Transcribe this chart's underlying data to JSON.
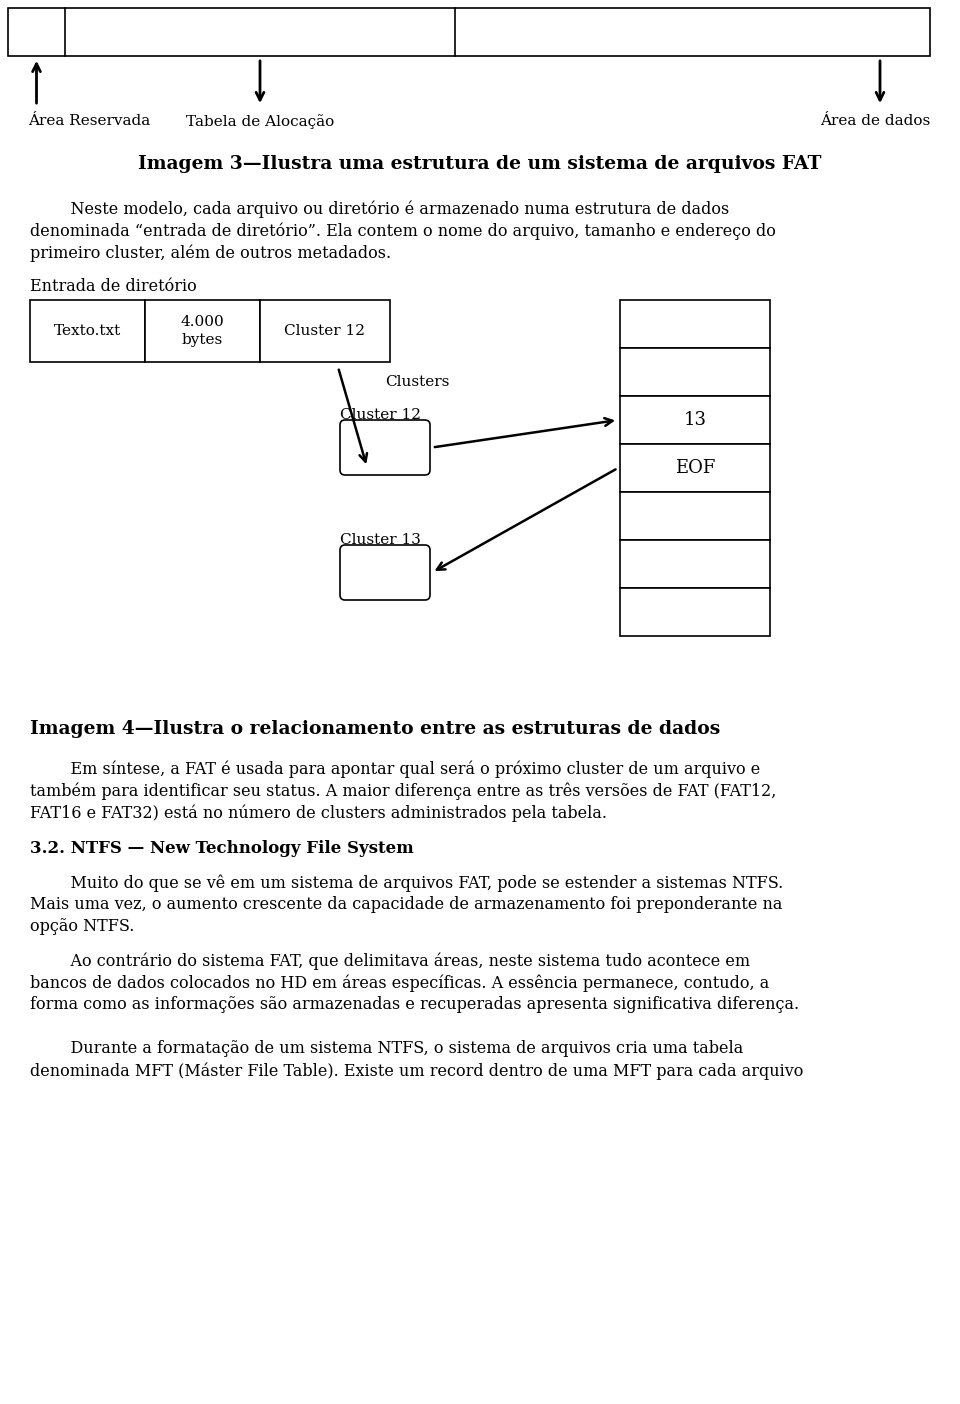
{
  "bg_color": "#ffffff",
  "text_color": "#000000",
  "title1": "Imagem 3—Ilustra uma estrutura de um sistema de arquivos FAT",
  "para1_line1": "    Neste modelo, cada arquivo ou diretório é armazenado numa estrutura de dados",
  "para1_line2": "denominada “entrada de diretório”. Ela contem o nome do arquivo, tamanho e endereço do",
  "para1_line3": "primeiro cluster, além de outros metadados.",
  "label_entrada": "Entrada de diretório",
  "cell1": "Texto.txt",
  "cell2": "4.000\nbytes",
  "cell3": "Cluster 12",
  "label_clusters": "Clusters",
  "label_cluster12": "Cluster 12",
  "label_cluster13": "Cluster 13",
  "label_area_reservada": "Área Reservada",
  "label_tabela_alocacao": "Tabela de Alocação",
  "label_area_dados": "Área de dados",
  "fat_cells": [
    "",
    "",
    "13",
    "EOF",
    "",
    "",
    ""
  ],
  "title2": "Imagem 4—Ilustra o relacionamento entre as estruturas de dados",
  "para2_line1": "    Em síntese, a FAT é usada para apontar qual será o próximo cluster de um arquivo e",
  "para2_line2": "também para identificar seu status. A maior diferença entre as três versões de FAT (FAT12,",
  "para2_line3": "FAT16 e FAT32) está no número de clusters administrados pela tabela.",
  "section_title": "3.2. NTFS — New Technology File System",
  "para3_line1": "    Muito do que se vê em um sistema de arquivos FAT, pode se estender a sistemas NTFS.",
  "para3_line2": "Mais uma vez, o aumento crescente da capacidade de armazenamento foi preponderante na",
  "para3_line3": "opção NTFS.",
  "para4_line1": "    Ao contrário do sistema FAT, que delimitava áreas, neste sistema tudo acontece em",
  "para4_line2": "bancos de dados colocados no HD em áreas específicas. A essência permanece, contudo, a",
  "para4_line3": "forma como as informações são armazenadas e recuperadas apresenta significativa diferença.",
  "para5_line1": "    Durante a formatação de um sistema NTFS, o sistema de arquivos cria uma tabela",
  "para5_line2": "denominada MFT (Máster File Table). Existe um record dentro de uma MFT para cada arquivo"
}
